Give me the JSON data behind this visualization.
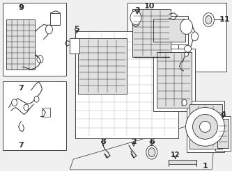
{
  "bg_color": "#f0f0f0",
  "line_color": "#2a2a2a",
  "white": "#ffffff",
  "gray_fill": "#d0d0d0",
  "light_gray": "#e0e0e0",
  "figsize": [
    3.33,
    2.46
  ],
  "dpi": 100,
  "label_fs": 7,
  "bold_fs": 8
}
